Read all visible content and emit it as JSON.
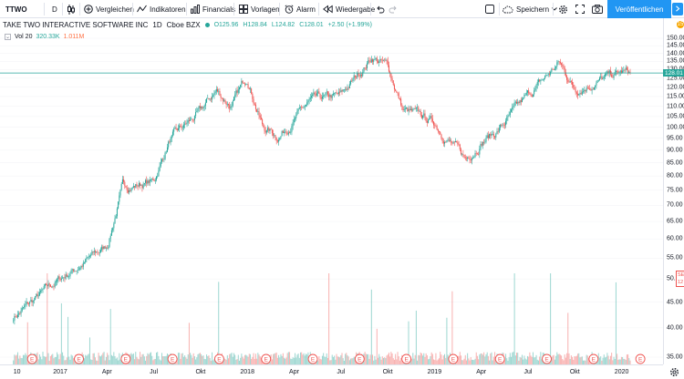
{
  "toolbar": {
    "symbol": "TTWO",
    "interval": "D",
    "compare": "Vergleichen",
    "indicators": "Indikatoren",
    "financials": "Financials",
    "templates": "Vorlagen",
    "alert": "Alarm",
    "replay": "Wiedergabe",
    "save": "Speichern",
    "publish": "Veröffentlichen"
  },
  "legend": {
    "title": "TAKE TWO INTERACTIVE SOFTWARE INC",
    "interval": "1D",
    "exchange": "Cboe BZX",
    "open": "O125.96",
    "high": "H128.84",
    "low": "L124.82",
    "close": "C128.01",
    "change": "+2.50 (+1.99%)"
  },
  "volume_legend": {
    "label": "Vol 20",
    "value": "320.33K",
    "ma_value": "1.011M"
  },
  "price_scale": {
    "ticks": [
      "150.00",
      "145.00",
      "140.00",
      "135.00",
      "130.00",
      "125.00",
      "120.00",
      "115.00",
      "110.00",
      "105.00",
      "100.00",
      "95.00",
      "90.00",
      "85.00",
      "80.00",
      "75.00",
      "70.00",
      "65.00",
      "60.00",
      "55.00",
      "50.00",
      "45.00",
      "40.00",
      "35.00"
    ],
    "last_price": "128.01",
    "alert_count": "15",
    "side_label": "SEI 12"
  },
  "time_scale": {
    "ticks": [
      "10",
      "2017",
      "Apr",
      "Jul",
      "Okt",
      "2018",
      "Apr",
      "Jul",
      "Okt",
      "2019",
      "Apr",
      "Jul",
      "Okt",
      "2020"
    ]
  },
  "earnings_marker": "E",
  "colors": {
    "up": "#26a69a",
    "down": "#ef5350",
    "accent": "#2196f3",
    "last_price_line": "#26a69a"
  },
  "chart_data": {
    "type": "candlestick",
    "scale": "log",
    "ylim": [
      33,
      155
    ],
    "anchors": [
      {
        "t": "2016-10",
        "close": 42
      },
      {
        "t": "2017-01",
        "close": 50
      },
      {
        "t": "2017-04",
        "close": 58
      },
      {
        "t": "2017-05",
        "close": 76
      },
      {
        "t": "2017-07",
        "close": 78
      },
      {
        "t": "2017-08",
        "close": 94
      },
      {
        "t": "2017-10",
        "close": 107
      },
      {
        "t": "2017-11",
        "close": 118
      },
      {
        "t": "2017-12",
        "close": 110
      },
      {
        "t": "2018-01",
        "close": 126
      },
      {
        "t": "2018-02",
        "close": 100
      },
      {
        "t": "2018-03",
        "close": 96
      },
      {
        "t": "2018-05",
        "close": 112
      },
      {
        "t": "2018-07",
        "close": 115
      },
      {
        "t": "2018-09",
        "close": 138
      },
      {
        "t": "2018-10",
        "close": 132
      },
      {
        "t": "2018-11",
        "close": 108
      },
      {
        "t": "2019-01",
        "close": 102
      },
      {
        "t": "2019-03",
        "close": 86
      },
      {
        "t": "2019-04",
        "close": 94
      },
      {
        "t": "2019-05",
        "close": 98
      },
      {
        "t": "2019-07",
        "close": 115
      },
      {
        "t": "2019-09",
        "close": 134
      },
      {
        "t": "2019-10",
        "close": 119
      },
      {
        "t": "2019-11",
        "close": 122
      },
      {
        "t": "2020-01",
        "close": 128.01
      }
    ],
    "earnings_dates": [
      "2016-11",
      "2017-02",
      "2017-05",
      "2017-08",
      "2017-11",
      "2018-02",
      "2018-05",
      "2018-08",
      "2018-11",
      "2019-02",
      "2019-05",
      "2019-08",
      "2019-11",
      "2020-02"
    ]
  }
}
